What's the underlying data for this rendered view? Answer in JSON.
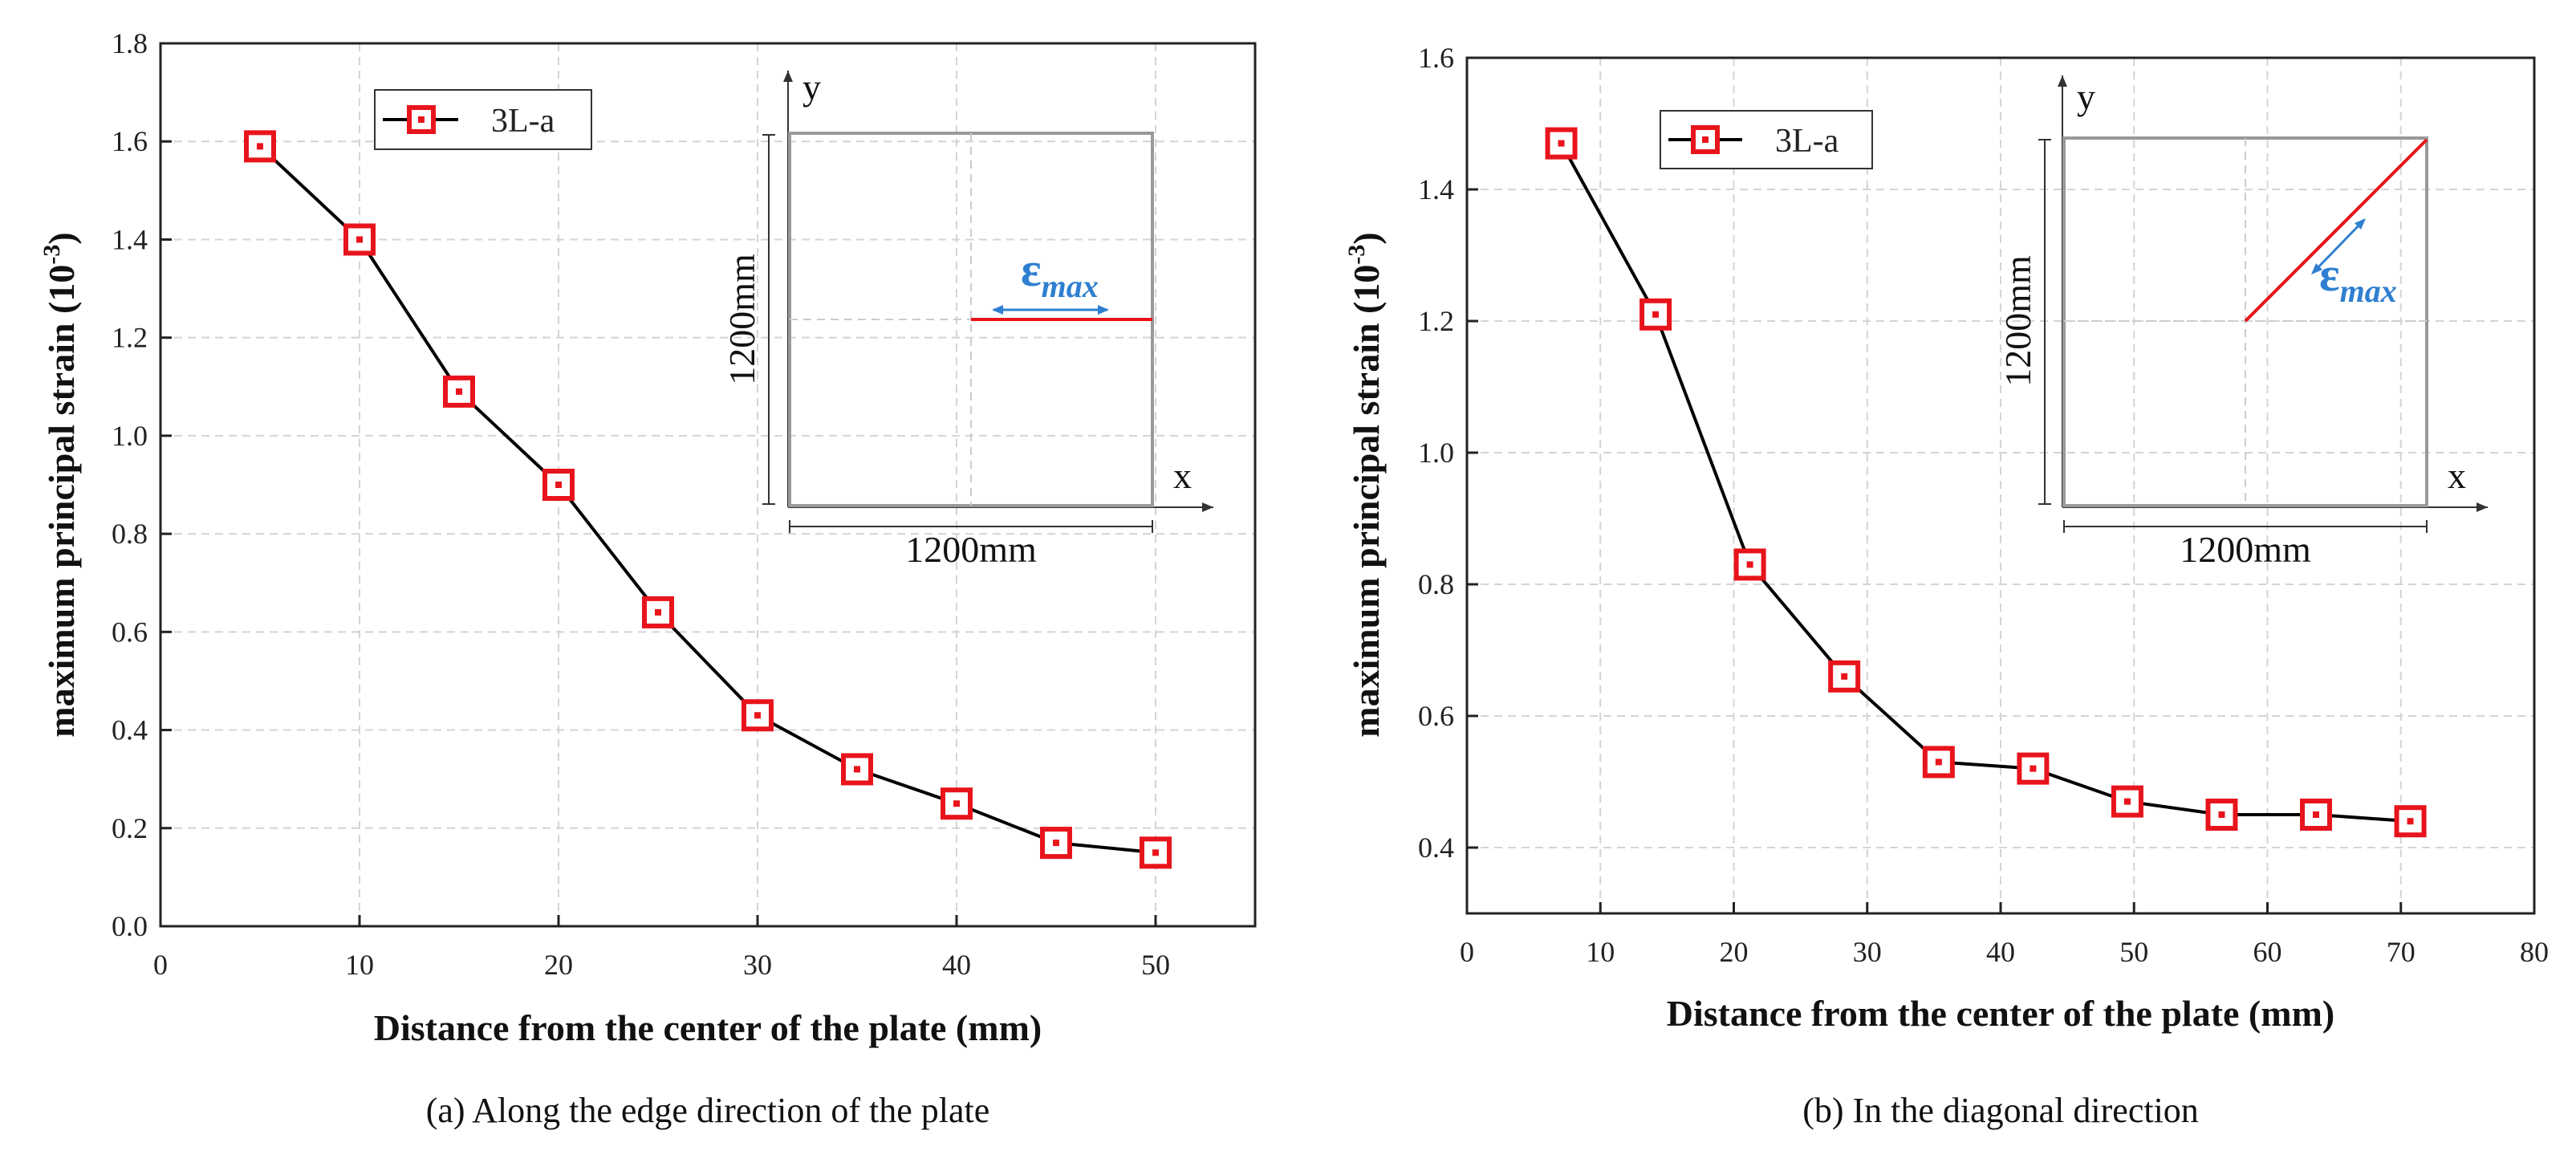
{
  "chart_data": [
    {
      "type": "line",
      "id": "a",
      "x": [
        5,
        10,
        15,
        20,
        25,
        30,
        35,
        40,
        45,
        50
      ],
      "series": [
        {
          "name": "3L-a",
          "values": [
            1.59,
            1.4,
            1.09,
            0.9,
            0.64,
            0.43,
            0.32,
            0.25,
            0.17,
            0.15
          ]
        }
      ],
      "xlabel": "Distance from the center of the plate (mm)",
      "ylabel_main": "maximum principal strain (10",
      "ylabel_exp": "-3",
      "ylabel_end": ")",
      "xlim": [
        0,
        55
      ],
      "ylim": [
        0,
        1.8
      ],
      "xticks": [
        0,
        10,
        20,
        30,
        40,
        50
      ],
      "yticks": [
        "0.0",
        "0.2",
        "0.4",
        "0.6",
        "0.8",
        "1.0",
        "1.2",
        "1.4",
        "1.6",
        "1.8"
      ],
      "legend": "3L-a",
      "caption": "(a)  Along the edge direction of the plate",
      "inset": {
        "y_label": "y",
        "x_label": "x",
        "height_dim": "1200mm",
        "width_dim": "1200mm",
        "eps_symbol": "ε",
        "eps_sub": "max",
        "direction": "edge"
      }
    },
    {
      "type": "line",
      "id": "b",
      "x": [
        7.07,
        14.14,
        21.21,
        28.28,
        35.36,
        42.43,
        49.5,
        56.57,
        63.64,
        70.71
      ],
      "series": [
        {
          "name": "3L-a",
          "values": [
            1.47,
            1.21,
            0.83,
            0.66,
            0.53,
            0.52,
            0.47,
            0.45,
            0.45,
            0.44
          ]
        }
      ],
      "xlabel": "Distance from the center of the plate (mm)",
      "ylabel_main": "maximum principal strain (10",
      "ylabel_exp": "-3",
      "ylabel_end": ")",
      "xlim": [
        0,
        80
      ],
      "ylim": [
        0.3,
        1.6
      ],
      "xticks": [
        0,
        10,
        20,
        30,
        40,
        50,
        60,
        70,
        80
      ],
      "yticks": [
        "0.4",
        "0.6",
        "0.8",
        "1.0",
        "1.2",
        "1.4",
        "1.6"
      ],
      "legend": "3L-a",
      "caption": "(b)  In the diagonal direction",
      "inset": {
        "y_label": "y",
        "x_label": "x",
        "height_dim": "1200mm",
        "width_dim": "1200mm",
        "eps_symbol": "ε",
        "eps_sub": "max",
        "direction": "diagonal"
      }
    }
  ],
  "colors": {
    "line": "#000000",
    "marker": "#e8141c",
    "inset_line": "#e8141c",
    "eps": "#2f7fd0"
  }
}
